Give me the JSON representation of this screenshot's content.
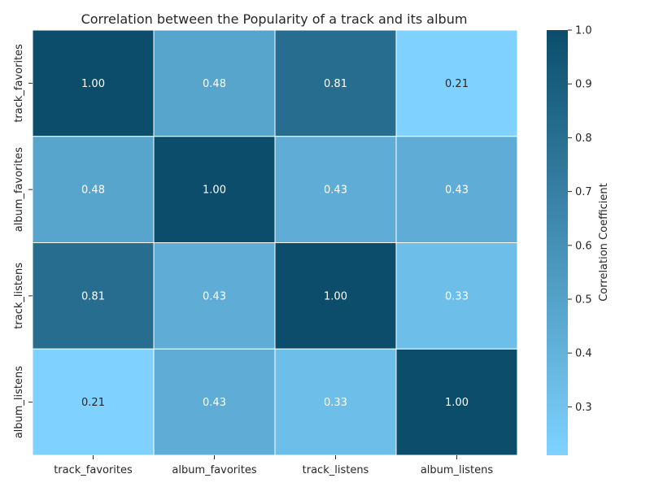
{
  "chart_data": {
    "type": "heatmap",
    "title": "Correlation between the Popularity of a track and its album",
    "row_labels": [
      "track_favorites",
      "album_favorites",
      "track_listens",
      "album_listens"
    ],
    "col_labels": [
      "track_favorites",
      "album_favorites",
      "track_listens",
      "album_listens"
    ],
    "values": [
      [
        1.0,
        0.48,
        0.81,
        0.21
      ],
      [
        0.48,
        1.0,
        0.43,
        0.43
      ],
      [
        0.81,
        0.43,
        1.0,
        0.33
      ],
      [
        0.21,
        0.43,
        0.33,
        1.0
      ]
    ],
    "cell_text": [
      [
        "1.00",
        "0.48",
        "0.81",
        "0.21"
      ],
      [
        "0.48",
        "1.00",
        "0.43",
        "0.43"
      ],
      [
        "0.81",
        "0.43",
        "1.00",
        "0.33"
      ],
      [
        "0.21",
        "0.43",
        "0.33",
        "1.00"
      ]
    ],
    "colorbar": {
      "label": "Correlation Coefficient",
      "vmin": 0.21,
      "vmax": 1.0,
      "ticks": [
        0.3,
        0.4,
        0.5,
        0.6,
        0.7,
        0.8,
        0.9,
        1.0
      ],
      "tick_labels": [
        "0.3",
        "0.4",
        "0.5",
        "0.6",
        "0.7",
        "0.8",
        "0.9",
        "1.0"
      ],
      "color_low": "#7fd2ff",
      "color_high": "#0b4d6b"
    },
    "grid": true,
    "legend": "colorbar-right"
  }
}
